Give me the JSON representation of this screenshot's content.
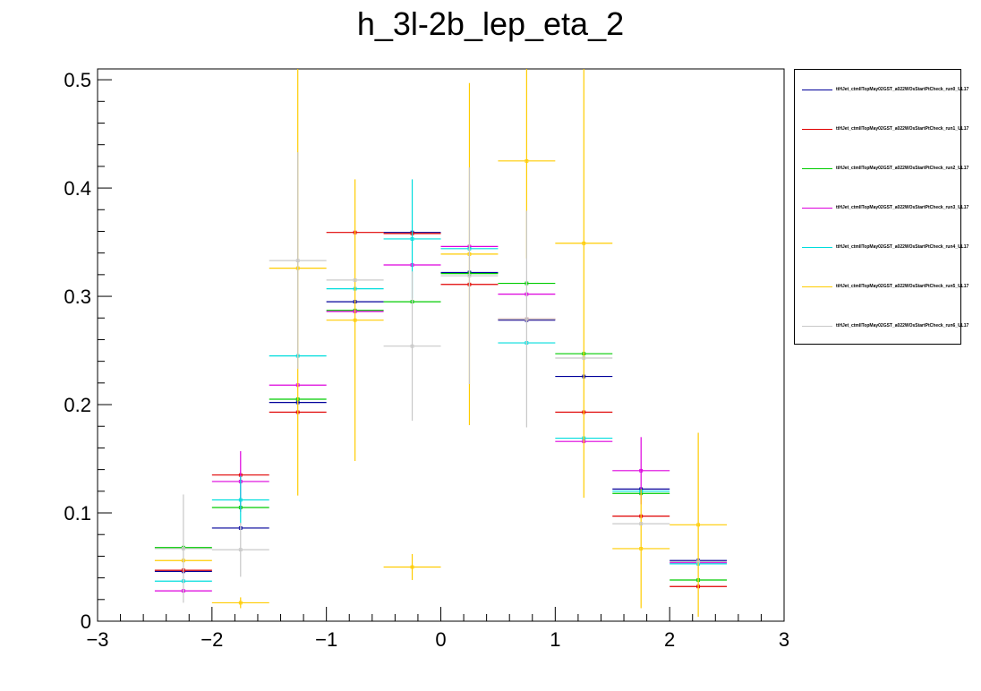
{
  "title": "h_3l-2b_lep_eta_2",
  "chart_data": {
    "type": "scatter",
    "title": "h_3l-2b_lep_eta_2",
    "xlabel": "",
    "ylabel": "",
    "xlim": [
      -3,
      3
    ],
    "ylim": [
      0,
      0.51
    ],
    "x_ticks": [
      -3,
      -2,
      -1,
      0,
      1,
      2,
      3
    ],
    "x_tick_labels": [
      "−3",
      "−2",
      "−1",
      "0",
      "1",
      "2",
      "3"
    ],
    "y_ticks": [
      0,
      0.1,
      0.2,
      0.3,
      0.4,
      0.5
    ],
    "y_tick_labels": [
      "0",
      "0.1",
      "0.2",
      "0.3",
      "0.4",
      "0.5"
    ],
    "bin_centers": [
      -2.25,
      -1.75,
      -1.25,
      -0.75,
      -0.25,
      0.25,
      0.75,
      1.25,
      1.75,
      2.25
    ],
    "bin_half_width": 0.25,
    "grid": false,
    "legend_position": "right",
    "series": [
      {
        "name": "ttHJet_ctmIITopMay02GST_a022WOsStartPtCheck_run0_UL17",
        "color": "#00009a",
        "values": [
          0.046,
          0.086,
          0.202,
          0.295,
          0.359,
          0.322,
          0.278,
          0.226,
          0.122,
          0.056
        ],
        "errors": [
          0.0,
          0.0,
          0.0,
          0.0,
          0.0,
          0.0,
          0.0,
          0.0,
          0.0,
          0.0
        ]
      },
      {
        "name": "ttHJet_ctmIITopMay02GST_a022WOsStartPtCheck_run1_UL17",
        "color": "#e00000",
        "values": [
          0.047,
          0.135,
          0.193,
          0.359,
          0.358,
          0.311,
          0.279,
          0.193,
          0.097,
          0.032
        ],
        "errors": [
          0.0,
          0.0,
          0.0,
          0.0,
          0.0,
          0.0,
          0.0,
          0.0,
          0.0,
          0.0
        ]
      },
      {
        "name": "ttHJet_ctmIITopMay02GST_a022WOsStartPtCheck_run2_UL17",
        "color": "#00cc00",
        "values": [
          0.068,
          0.105,
          0.205,
          0.287,
          0.295,
          0.321,
          0.312,
          0.247,
          0.118,
          0.038
        ],
        "errors": [
          0.0,
          0.0,
          0.0,
          0.0,
          0.0,
          0.0,
          0.0,
          0.0,
          0.0,
          0.0
        ]
      },
      {
        "name": "ttHJet_ctmIITopMay02GST_a022WOsStartPtCheck_run3_UL17",
        "color": "#dd00dd",
        "values": [
          0.028,
          0.129,
          0.218,
          0.286,
          0.329,
          0.346,
          0.302,
          0.166,
          0.139,
          0.054
        ],
        "errors": [
          0.0,
          0.028,
          0.0,
          0.0,
          0.0,
          0.0,
          0.0,
          0.0,
          0.031,
          0.0
        ]
      },
      {
        "name": "ttHJet_ctmIITopMay02GST_a022WOsStartPtCheck_run4_UL17",
        "color": "#00dddd",
        "values": [
          0.037,
          0.112,
          0.245,
          0.307,
          0.353,
          0.344,
          0.257,
          0.169,
          0.12,
          0.053
        ],
        "errors": [
          0.0,
          0.022,
          0.0,
          0.0,
          0.055,
          0.0,
          0.0,
          0.0,
          0.0,
          0.0
        ]
      },
      {
        "name": "ttHJet_ctmIITopMay02GST_a022WOsStartPtCheck_run5_UL17",
        "color": "#ffcc00",
        "values": [
          0.056,
          0.017,
          0.326,
          0.278,
          0.05,
          0.339,
          0.425,
          0.349,
          0.067,
          0.089
        ],
        "errors": [
          0.0,
          0.005,
          0.21,
          0.13,
          0.012,
          0.158,
          0.09,
          0.235,
          0.055,
          0.085
        ]
      },
      {
        "name": "ttHJet_ctmIITopMay02GST_a022WOsStartPtCheck_run6_UL17",
        "color": "#c8c8c8",
        "values": [
          0.067,
          0.066,
          0.333,
          0.315,
          0.254,
          0.319,
          0.279,
          0.243,
          0.09,
          0.055
        ],
        "errors": [
          0.05,
          0.025,
          0.1,
          0.0,
          0.069,
          0.1,
          0.1,
          0.0,
          0.0,
          0.0
        ]
      }
    ]
  }
}
